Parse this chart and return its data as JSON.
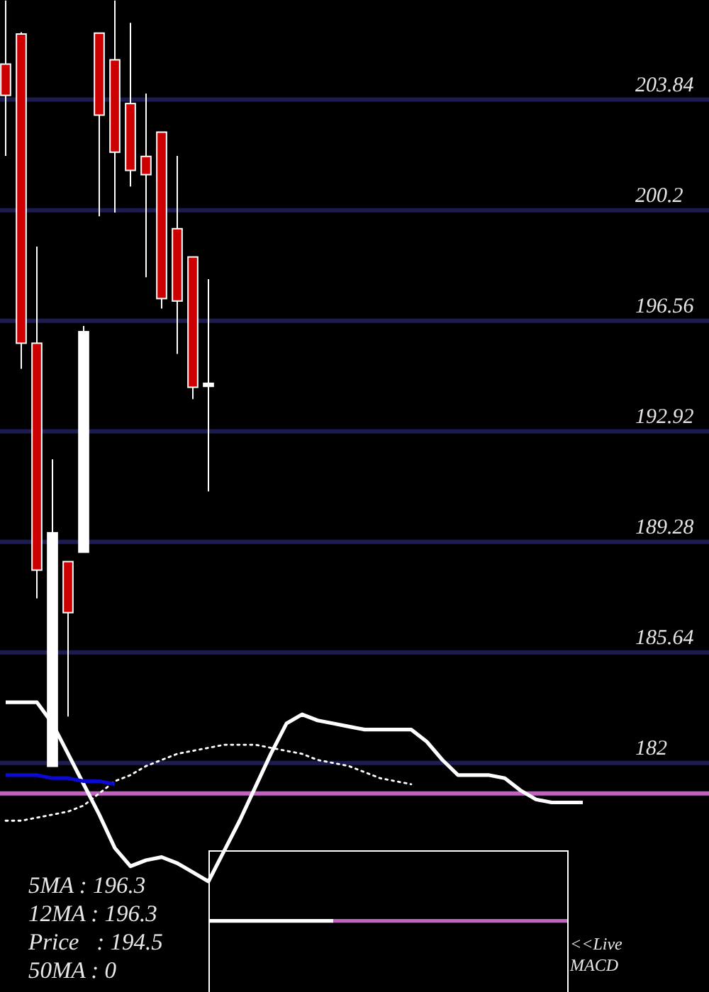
{
  "chart_data": {
    "type": "candlestick",
    "categories": [
      null,
      null,
      null,
      null,
      null,
      null,
      null,
      null,
      null,
      null,
      null,
      null,
      null,
      null,
      null,
      null,
      null,
      null,
      null,
      null,
      null,
      null,
      null,
      null,
      null,
      null,
      null,
      null,
      null,
      null,
      null,
      null,
      null,
      null,
      null,
      null,
      null,
      null
    ],
    "ohlc": [
      [
        205.01,
        207.1,
        201.99,
        203.98
      ],
      [
        206.0,
        206.06,
        194.98,
        195.82
      ],
      [
        195.82,
        199.0,
        187.42,
        188.35
      ],
      [
        181.89,
        192.0,
        181.89,
        189.58
      ],
      [
        188.63,
        188.63,
        183.53,
        186.95
      ],
      [
        188.94,
        196.39,
        188.94,
        196.2
      ],
      [
        206.03,
        206.03,
        200.0,
        203.33
      ],
      [
        205.15,
        207.1,
        200.12,
        202.11
      ],
      [
        203.71,
        206.37,
        200.98,
        201.51
      ],
      [
        201.97,
        204.04,
        197.99,
        201.37
      ],
      [
        202.77,
        202.77,
        196.96,
        197.29
      ],
      [
        199.59,
        201.99,
        195.47,
        197.21
      ],
      [
        198.66,
        198.66,
        193.98,
        194.37
      ],
      [
        194.4,
        197.93,
        190.94,
        194.5
      ],
      null,
      null,
      null,
      null,
      null,
      null,
      null,
      null,
      null,
      null,
      null,
      null,
      null,
      null,
      null,
      null,
      null,
      null,
      null,
      null,
      null,
      null,
      null,
      null
    ],
    "colors": [
      "#cc0000",
      "#cc0000",
      "#cc0000",
      "#ffffff",
      "#cc0000",
      "#ffffff",
      "#cc0000",
      "#cc0000",
      "#cc0000",
      "#cc0000",
      "#cc0000",
      "#cc0000",
      "#cc0000",
      "#ffffff",
      null,
      null,
      null,
      null,
      null,
      null,
      null,
      null,
      null,
      null,
      null,
      null,
      null,
      null,
      null,
      null,
      null,
      null,
      null,
      null,
      null,
      null,
      null,
      null
    ],
    "series": [
      {
        "type": "line",
        "color": "#ffffff",
        "values": [
          184.0,
          184.0,
          184.0,
          183.3,
          182.3,
          181.3,
          180.3,
          179.2,
          178.6,
          178.8,
          178.9,
          178.7,
          178.4,
          178.1,
          179.1,
          180.1,
          181.2,
          182.3,
          183.3,
          183.6,
          183.4,
          183.3,
          183.2,
          183.1,
          183.1,
          183.1,
          183.1,
          182.7,
          182.1,
          181.6,
          181.6,
          181.6,
          181.5,
          181.1,
          180.8,
          180.7,
          180.7,
          180.7
        ]
      },
      {
        "type": "line",
        "color": "#ffffff",
        "line_style": "dotted",
        "values": [
          180.1,
          180.1,
          180.2,
          180.3,
          180.4,
          180.6,
          181.0,
          181.4,
          181.6,
          181.9,
          182.1,
          182.3,
          182.4,
          182.5,
          182.6,
          182.6,
          182.6,
          182.5,
          182.4,
          182.3,
          182.1,
          182.0,
          181.9,
          181.7,
          181.5,
          181.4,
          181.3,
          null,
          null,
          null,
          null,
          null,
          null,
          null,
          null,
          null,
          null,
          null
        ]
      },
      {
        "type": "line",
        "color": "#0a0ad2",
        "values": [
          181.6,
          181.6,
          181.6,
          181.5,
          181.5,
          181.4,
          181.4,
          181.3,
          null,
          null,
          null,
          null,
          null,
          null,
          null,
          null,
          null,
          null,
          null,
          null,
          null,
          null,
          null,
          null,
          null,
          null,
          null,
          null,
          null,
          null,
          null,
          null,
          null,
          null,
          null,
          null,
          null,
          null
        ]
      },
      {
        "type": "line",
        "color": "#ffffff",
        "values": [
          null,
          null,
          null,
          null,
          null,
          null,
          null,
          null,
          null,
          null,
          null,
          null,
          null,
          176.8,
          176.8,
          176.8,
          176.8,
          176.8,
          176.8,
          176.8,
          176.8,
          176.8,
          null,
          null,
          null,
          null,
          null,
          null,
          null,
          null,
          null,
          null,
          null,
          null,
          null,
          null,
          null,
          null
        ]
      },
      {
        "type": "line",
        "color": "#c462c4",
        "values": [
          null,
          null,
          null,
          null,
          null,
          null,
          null,
          null,
          null,
          null,
          null,
          null,
          null,
          null,
          null,
          null,
          null,
          null,
          null,
          null,
          null,
          176.8,
          176.8,
          176.8,
          176.8,
          176.8,
          176.8,
          176.8,
          176.8,
          176.8,
          176.8,
          176.8,
          176.8,
          176.8,
          176.8,
          176.8,
          176.8,
          null
        ]
      }
    ],
    "ylim": [
      174.46,
      207.12
    ],
    "yticks": [
      182,
      185.64,
      189.28,
      192.92,
      196.56,
      200.2,
      203.84
    ],
    "grid": "y",
    "tick_labels": "y",
    "ref_lines": [
      {
        "axis": "y",
        "value": 181.0,
        "color": "#c462c4"
      }
    ],
    "annotations": [
      "5MA : 196.3",
      "12MA : 196.3",
      "Price   : 194.5",
      "50MA : 0",
      "<<Live MACD"
    ]
  }
}
